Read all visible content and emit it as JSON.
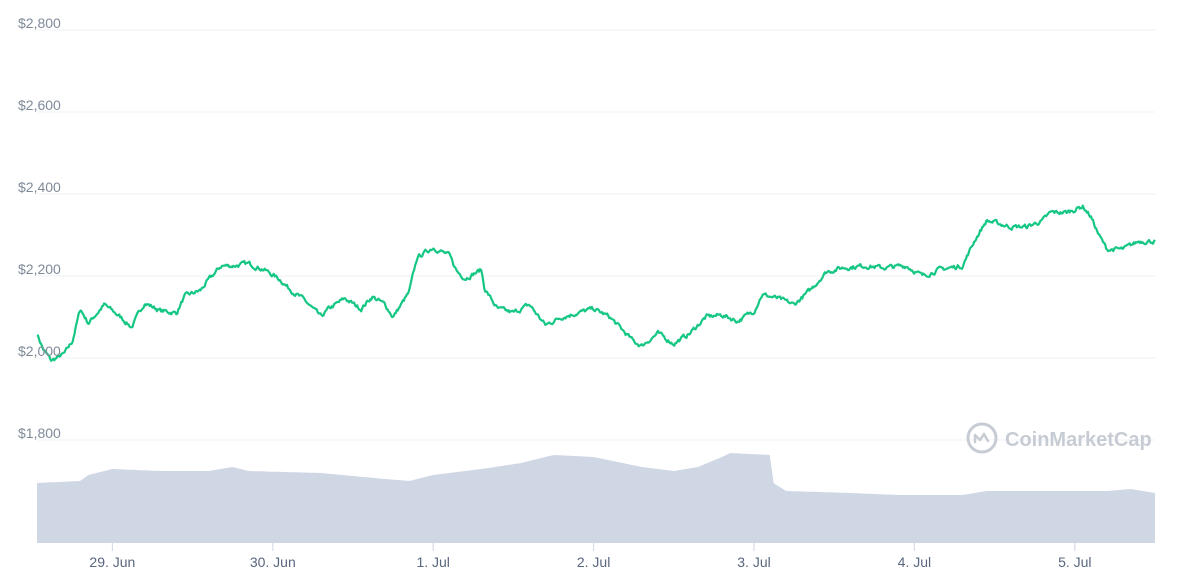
{
  "chart_data": {
    "type": "line",
    "y_ticks": [
      "$2,800",
      "$2,600",
      "$2,400",
      "$2,200",
      "$2,000",
      "$1,800"
    ],
    "y_tick_values": [
      2800,
      2600,
      2400,
      2200,
      2000,
      1800
    ],
    "ylim": [
      1800,
      2800
    ],
    "x_ticks": [
      "29. Jun",
      "30. Jun",
      "1. Jul",
      "2. Jul",
      "3. Jul",
      "4. Jul",
      "5. Jul"
    ],
    "x_tick_days": [
      0,
      1,
      2,
      3,
      4,
      5,
      6
    ],
    "xlim_days": [
      -0.47,
      6.5
    ],
    "grid": true,
    "line_color": "#16c784",
    "volume_color": "#cfd6e4",
    "price_keypoints": [
      [
        -0.47,
        2060
      ],
      [
        -0.43,
        2020
      ],
      [
        -0.38,
        1993
      ],
      [
        -0.3,
        2010
      ],
      [
        -0.25,
        2040
      ],
      [
        -0.2,
        2120
      ],
      [
        -0.15,
        2085
      ],
      [
        -0.05,
        2130
      ],
      [
        0.05,
        2100
      ],
      [
        0.12,
        2075
      ],
      [
        0.2,
        2135
      ],
      [
        0.3,
        2115
      ],
      [
        0.4,
        2110
      ],
      [
        0.45,
        2150
      ],
      [
        0.55,
        2165
      ],
      [
        0.6,
        2190
      ],
      [
        0.68,
        2225
      ],
      [
        0.75,
        2225
      ],
      [
        0.85,
        2230
      ],
      [
        0.95,
        2215
      ],
      [
        1.05,
        2190
      ],
      [
        1.1,
        2170
      ],
      [
        1.2,
        2140
      ],
      [
        1.3,
        2100
      ],
      [
        1.35,
        2120
      ],
      [
        1.45,
        2145
      ],
      [
        1.55,
        2120
      ],
      [
        1.62,
        2150
      ],
      [
        1.7,
        2130
      ],
      [
        1.75,
        2100
      ],
      [
        1.85,
        2160
      ],
      [
        1.9,
        2245
      ],
      [
        2.0,
        2270
      ],
      [
        2.1,
        2250
      ],
      [
        2.15,
        2210
      ],
      [
        2.2,
        2195
      ],
      [
        2.3,
        2215
      ],
      [
        2.32,
        2170
      ],
      [
        2.4,
        2120
      ],
      [
        2.5,
        2110
      ],
      [
        2.6,
        2130
      ],
      [
        2.7,
        2080
      ],
      [
        2.8,
        2100
      ],
      [
        2.9,
        2110
      ],
      [
        3.0,
        2120
      ],
      [
        3.1,
        2100
      ],
      [
        3.2,
        2060
      ],
      [
        3.25,
        2040
      ],
      [
        3.3,
        2030
      ],
      [
        3.4,
        2060
      ],
      [
        3.5,
        2035
      ],
      [
        3.6,
        2060
      ],
      [
        3.7,
        2100
      ],
      [
        3.8,
        2105
      ],
      [
        3.9,
        2090
      ],
      [
        4.0,
        2115
      ],
      [
        4.05,
        2155
      ],
      [
        4.15,
        2145
      ],
      [
        4.25,
        2130
      ],
      [
        4.35,
        2165
      ],
      [
        4.45,
        2210
      ],
      [
        4.55,
        2220
      ],
      [
        4.7,
        2225
      ],
      [
        4.8,
        2220
      ],
      [
        4.95,
        2225
      ],
      [
        5.05,
        2200
      ],
      [
        5.15,
        2215
      ],
      [
        5.3,
        2225
      ],
      [
        5.38,
        2290
      ],
      [
        5.45,
        2335
      ],
      [
        5.6,
        2320
      ],
      [
        5.7,
        2320
      ],
      [
        5.8,
        2335
      ],
      [
        5.85,
        2355
      ],
      [
        5.95,
        2355
      ],
      [
        6.05,
        2370
      ],
      [
        6.1,
        2345
      ],
      [
        6.15,
        2300
      ],
      [
        6.2,
        2265
      ],
      [
        6.3,
        2265
      ],
      [
        6.4,
        2285
      ],
      [
        6.5,
        2285
      ]
    ],
    "volume_keypoints": [
      [
        -0.47,
        0.3
      ],
      [
        -0.2,
        0.31
      ],
      [
        -0.15,
        0.34
      ],
      [
        0.0,
        0.37
      ],
      [
        0.3,
        0.36
      ],
      [
        0.6,
        0.36
      ],
      [
        0.75,
        0.38
      ],
      [
        0.85,
        0.36
      ],
      [
        1.3,
        0.35
      ],
      [
        1.7,
        0.32
      ],
      [
        1.85,
        0.31
      ],
      [
        2.0,
        0.34
      ],
      [
        2.3,
        0.37
      ],
      [
        2.55,
        0.4
      ],
      [
        2.75,
        0.44
      ],
      [
        3.0,
        0.43
      ],
      [
        3.3,
        0.38
      ],
      [
        3.5,
        0.36
      ],
      [
        3.65,
        0.38
      ],
      [
        3.8,
        0.43
      ],
      [
        3.85,
        0.45
      ],
      [
        4.1,
        0.44
      ],
      [
        4.12,
        0.3
      ],
      [
        4.2,
        0.26
      ],
      [
        4.6,
        0.25
      ],
      [
        4.9,
        0.24
      ],
      [
        5.3,
        0.24
      ],
      [
        5.45,
        0.26
      ],
      [
        5.8,
        0.26
      ],
      [
        6.2,
        0.26
      ],
      [
        6.35,
        0.27
      ],
      [
        6.5,
        0.25
      ]
    ]
  },
  "watermark": {
    "text": "CoinMarketCap"
  }
}
